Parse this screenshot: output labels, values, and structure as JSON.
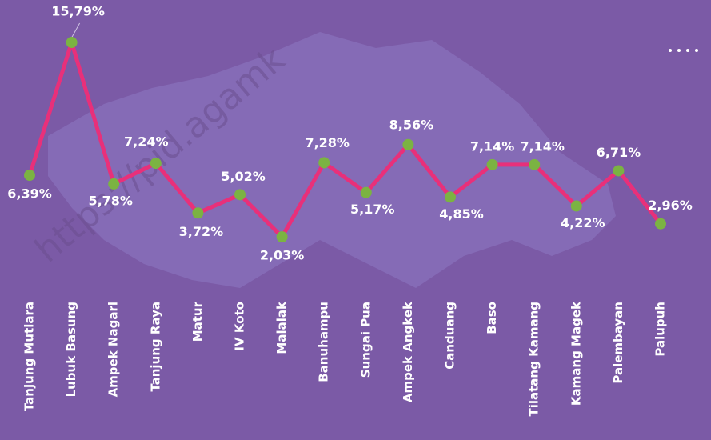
{
  "watermark": "https://pid.agamk",
  "chart_data": {
    "type": "line",
    "categories": [
      "Tanjung Mutiara",
      "Lubuk Basung",
      "Ampek Nagari",
      "Tanjung Raya",
      "Matur",
      "IV Koto",
      "Malalak",
      "Banuhampu",
      "Sungai Pua",
      "Ampek Angkek",
      "Canduang",
      "Baso",
      "Tilatang Kamang",
      "Kamang Magek",
      "Palembayan",
      "Palupuh"
    ],
    "values": [
      6.39,
      15.79,
      5.78,
      7.24,
      3.72,
      5.02,
      2.03,
      7.28,
      5.17,
      8.56,
      4.85,
      7.14,
      7.14,
      4.22,
      6.71,
      2.96
    ],
    "value_labels": [
      "6,39%",
      "15,79%",
      "5,78%",
      "7,24%",
      "3,72%",
      "5,02%",
      "2,03%",
      "7,28%",
      "5,17%",
      "8,56%",
      "4,85%",
      "7,14%",
      "7,14%",
      "4,22%",
      "6,71%",
      "2,96%"
    ],
    "color": "#e8307a",
    "marker_color": "#7bb342",
    "ylim": [
      0,
      18
    ]
  }
}
